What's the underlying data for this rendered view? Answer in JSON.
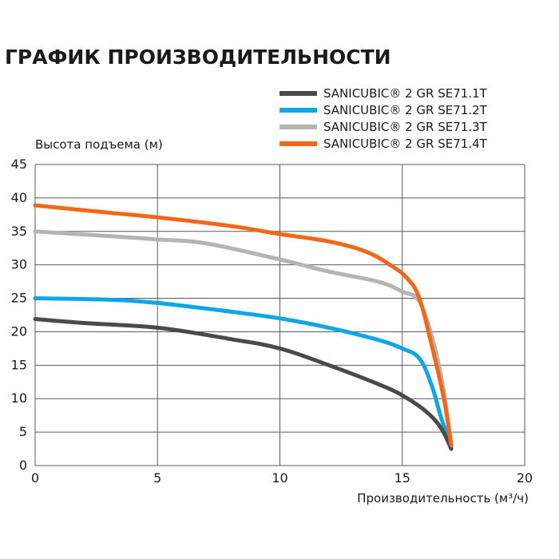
{
  "chart_data": {
    "type": "line",
    "title": "ГРАФИК ПРОИЗВОДИТЕЛЬНОСТИ",
    "xlabel": "Производительность (м³/ч)",
    "ylabel": "Высота подъема (м)",
    "xlim": [
      0,
      20
    ],
    "ylim": [
      0,
      45
    ],
    "xticks": [
      "0",
      "5",
      "10",
      "15",
      "20"
    ],
    "yticks": [
      "0",
      "5",
      "10",
      "15",
      "20",
      "25",
      "30",
      "35",
      "40",
      "45"
    ],
    "grid": true,
    "legend_position": "top-right",
    "series": [
      {
        "name": "SANICUBIC® 2 GR SE71.1T",
        "color": "#4a4a4b",
        "x": [
          0,
          2,
          5,
          8,
          10,
          12,
          14,
          15,
          16,
          16.6,
          17
        ],
        "y": [
          21.9,
          21.3,
          20.6,
          18.9,
          17.5,
          15.0,
          12.2,
          10.5,
          8.0,
          5.5,
          2.5
        ]
      },
      {
        "name": "SANICUBIC® 2 GR SE71.2T",
        "color": "#0ea5e9",
        "x": [
          0,
          3,
          5,
          8,
          10,
          12,
          14,
          15,
          15.7,
          16.2,
          16.6,
          17
        ],
        "y": [
          25.0,
          24.8,
          24.3,
          23.0,
          22.0,
          20.6,
          18.8,
          17.5,
          16.0,
          12.0,
          7.0,
          3.0
        ]
      },
      {
        "name": "SANICUBIC® 2 GR SE71.3T",
        "color": "#b4b4b4",
        "x": [
          0,
          3,
          5,
          7,
          10,
          12,
          14,
          15,
          15.7,
          16.3,
          16.7,
          17
        ],
        "y": [
          35.0,
          34.3,
          33.8,
          33.2,
          30.8,
          29.0,
          27.5,
          26.0,
          24.5,
          18.0,
          11.0,
          3.0
        ]
      },
      {
        "name": "SANICUBIC® 2 GR SE71.4T",
        "color": "#f26818",
        "x": [
          0,
          3,
          5,
          8,
          10,
          12,
          13.5,
          14.5,
          15.2,
          15.7,
          16.2,
          16.7,
          17
        ],
        "y": [
          38.9,
          37.8,
          37.1,
          35.8,
          34.6,
          33.5,
          32.0,
          30.0,
          28.0,
          25.0,
          18.0,
          10.0,
          3.0
        ]
      }
    ]
  }
}
